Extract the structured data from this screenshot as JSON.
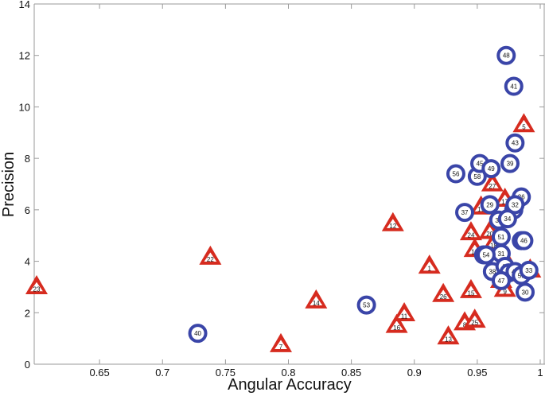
{
  "chart_data": {
    "type": "scatter",
    "title": "",
    "xlabel": "Angular Accuracy",
    "ylabel": "Precision",
    "xlim": [
      0.6,
      1.0
    ],
    "ylim": [
      0,
      14
    ],
    "grid": false,
    "legend": null,
    "x_ticks": [
      0.65,
      0.7,
      0.75,
      0.8,
      0.85,
      0.9,
      0.95,
      1
    ],
    "x_tick_labels": [
      "0.65",
      "0.7",
      "0.75",
      "0.8",
      "0.85",
      "0.9",
      "0.95",
      "1"
    ],
    "y_ticks": [
      0,
      2,
      4,
      6,
      8,
      10,
      12,
      14
    ],
    "y_tick_labels": [
      "0",
      "2",
      "4",
      "6",
      "8",
      "10",
      "12",
      "14"
    ],
    "colors": {
      "triangle_fill": "#d62b1f",
      "circle_stroke": "#3a45a8",
      "axis": "#999999"
    },
    "series": [
      {
        "name": "triangle",
        "marker": "triangle",
        "color": "#d62b1f",
        "points": [
          {
            "id": "23",
            "x": 0.6,
            "y": 3.0
          },
          {
            "id": "22",
            "x": 0.738,
            "y": 4.15
          },
          {
            "id": "7",
            "x": 0.794,
            "y": 0.75
          },
          {
            "id": "14",
            "x": 0.822,
            "y": 2.45
          },
          {
            "id": "12",
            "x": 0.883,
            "y": 5.45
          },
          {
            "id": "16",
            "x": 0.886,
            "y": 1.5
          },
          {
            "id": "11",
            "x": 0.892,
            "y": 1.95
          },
          {
            "id": "1",
            "x": 0.912,
            "y": 3.8
          },
          {
            "id": "26",
            "x": 0.923,
            "y": 2.7
          },
          {
            "id": "13",
            "x": 0.927,
            "y": 1.05
          },
          {
            "id": "8",
            "x": 0.94,
            "y": 1.6
          },
          {
            "id": "25",
            "x": 0.948,
            "y": 1.7
          },
          {
            "id": "15",
            "x": 0.945,
            "y": 2.85
          },
          {
            "id": "24",
            "x": 0.945,
            "y": 5.1
          },
          {
            "id": "10",
            "x": 0.948,
            "y": 4.45
          },
          {
            "id": "20",
            "x": 0.96,
            "y": 5.15
          },
          {
            "id": "18",
            "x": 0.963,
            "y": 4.7
          },
          {
            "id": "19",
            "x": 0.953,
            "y": 6.1
          },
          {
            "id": "27",
            "x": 0.962,
            "y": 7.0
          },
          {
            "id": "17",
            "x": 0.972,
            "y": 6.4
          },
          {
            "id": "21",
            "x": 0.974,
            "y": 3.9
          },
          {
            "id": "9",
            "x": 0.972,
            "y": 2.9
          },
          {
            "id": "6",
            "x": 0.969,
            "y": 3.25
          },
          {
            "id": "2",
            "x": 0.974,
            "y": 3.8
          },
          {
            "id": "4",
            "x": 0.98,
            "y": 3.5
          },
          {
            "id": "3",
            "x": 0.992,
            "y": 3.65
          },
          {
            "id": "5",
            "x": 0.987,
            "y": 9.3
          }
        ]
      },
      {
        "name": "circle",
        "marker": "circle",
        "color": "#3a45a8",
        "points": [
          {
            "id": "40",
            "x": 0.728,
            "y": 1.2
          },
          {
            "id": "53",
            "x": 0.862,
            "y": 2.3
          },
          {
            "id": "37",
            "x": 0.94,
            "y": 5.9
          },
          {
            "id": "56",
            "x": 0.933,
            "y": 7.4
          },
          {
            "id": "58",
            "x": 0.95,
            "y": 7.3
          },
          {
            "id": "45",
            "x": 0.952,
            "y": 7.8
          },
          {
            "id": "49",
            "x": 0.961,
            "y": 7.6
          },
          {
            "id": "39",
            "x": 0.976,
            "y": 7.8
          },
          {
            "id": "43",
            "x": 0.98,
            "y": 8.6
          },
          {
            "id": "41",
            "x": 0.979,
            "y": 10.8
          },
          {
            "id": "48",
            "x": 0.973,
            "y": 12.0
          },
          {
            "id": "29",
            "x": 0.96,
            "y": 6.2
          },
          {
            "id": "36",
            "x": 0.985,
            "y": 6.5
          },
          {
            "id": "57",
            "x": 0.979,
            "y": 6.0
          },
          {
            "id": "32",
            "x": 0.98,
            "y": 6.2
          },
          {
            "id": "35",
            "x": 0.967,
            "y": 5.6
          },
          {
            "id": "34",
            "x": 0.974,
            "y": 5.65
          },
          {
            "id": "51",
            "x": 0.969,
            "y": 4.95
          },
          {
            "id": "28",
            "x": 0.985,
            "y": 4.8
          },
          {
            "id": "46",
            "x": 0.987,
            "y": 4.8
          },
          {
            "id": "31",
            "x": 0.969,
            "y": 4.3
          },
          {
            "id": "55",
            "x": 0.955,
            "y": 4.25
          },
          {
            "id": "54",
            "x": 0.957,
            "y": 4.25
          },
          {
            "id": "38",
            "x": 0.962,
            "y": 3.6
          },
          {
            "id": "42",
            "x": 0.972,
            "y": 3.8
          },
          {
            "id": "52",
            "x": 0.975,
            "y": 3.55
          },
          {
            "id": "44",
            "x": 0.98,
            "y": 3.6
          },
          {
            "id": "50",
            "x": 0.985,
            "y": 3.45
          },
          {
            "id": "33",
            "x": 0.991,
            "y": 3.65
          },
          {
            "id": "47",
            "x": 0.969,
            "y": 3.25
          },
          {
            "id": "30",
            "x": 0.988,
            "y": 2.8
          }
        ]
      }
    ]
  }
}
